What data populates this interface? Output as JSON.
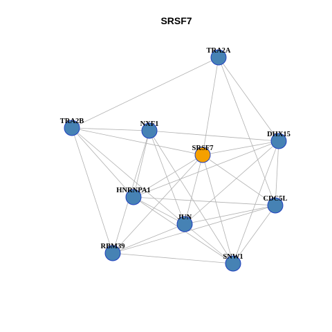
{
  "title": "SRSF7",
  "colors": {
    "center_node": "#f5a000",
    "neighbor_node": "#4682b4",
    "node_border": "#1f3fbf",
    "edge": "#b0b0b0"
  },
  "nodes": [
    {
      "id": "SRSF7",
      "label": "SRSF7",
      "role": "center"
    },
    {
      "id": "TRA2A",
      "label": "TRA2A",
      "role": "neighbor"
    },
    {
      "id": "TRA2B",
      "label": "TRA2B",
      "role": "neighbor"
    },
    {
      "id": "NXF1",
      "label": "NXF1",
      "role": "neighbor"
    },
    {
      "id": "DHX15",
      "label": "DHX15",
      "role": "neighbor"
    },
    {
      "id": "HNRNPA1",
      "label": "HNRNPA1",
      "role": "neighbor"
    },
    {
      "id": "CDC5L",
      "label": "CDC5L",
      "role": "neighbor"
    },
    {
      "id": "JUN",
      "label": "JUN",
      "role": "neighbor"
    },
    {
      "id": "RBM39",
      "label": "RBM39",
      "role": "neighbor"
    },
    {
      "id": "SNW1",
      "label": "SNW1",
      "role": "neighbor"
    }
  ],
  "edges": [
    [
      "TRA2A",
      "TRA2B"
    ],
    [
      "TRA2A",
      "SRSF7"
    ],
    [
      "TRA2A",
      "DHX15"
    ],
    [
      "TRA2A",
      "CDC5L"
    ],
    [
      "TRA2B",
      "NXF1"
    ],
    [
      "TRA2B",
      "SRSF7"
    ],
    [
      "TRA2B",
      "HNRNPA1"
    ],
    [
      "TRA2B",
      "JUN"
    ],
    [
      "TRA2B",
      "RBM39"
    ],
    [
      "NXF1",
      "DHX15"
    ],
    [
      "NXF1",
      "HNRNPA1"
    ],
    [
      "NXF1",
      "JUN"
    ],
    [
      "NXF1",
      "RBM39"
    ],
    [
      "NXF1",
      "SNW1"
    ],
    [
      "SRSF7",
      "DHX15"
    ],
    [
      "SRSF7",
      "HNRNPA1"
    ],
    [
      "SRSF7",
      "JUN"
    ],
    [
      "SRSF7",
      "RBM39"
    ],
    [
      "SRSF7",
      "SNW1"
    ],
    [
      "SRSF7",
      "CDC5L"
    ],
    [
      "DHX15",
      "CDC5L"
    ],
    [
      "DHX15",
      "HNRNPA1"
    ],
    [
      "DHX15",
      "JUN"
    ],
    [
      "DHX15",
      "SNW1"
    ],
    [
      "HNRNPA1",
      "CDC5L"
    ],
    [
      "HNRNPA1",
      "JUN"
    ],
    [
      "HNRNPA1",
      "SNW1"
    ],
    [
      "CDC5L",
      "JUN"
    ],
    [
      "CDC5L",
      "RBM39"
    ],
    [
      "CDC5L",
      "SNW1"
    ],
    [
      "JUN",
      "RBM39"
    ],
    [
      "JUN",
      "SNW1"
    ],
    [
      "RBM39",
      "SNW1"
    ]
  ]
}
